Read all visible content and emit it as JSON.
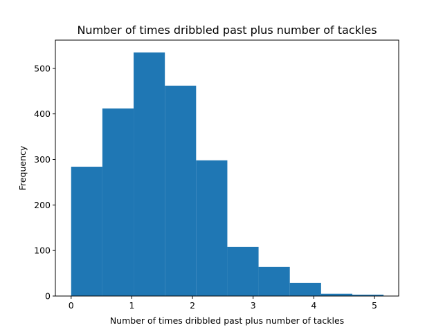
{
  "chart_data": {
    "type": "bar",
    "title": "Number of times dribbled past plus number of tackles",
    "xlabel": "Number of times dribbled past plus number of tackles",
    "ylabel": "Frequency",
    "xlim": [
      -0.26,
      5.4
    ],
    "ylim": [
      0,
      562
    ],
    "grid": false,
    "bar_color": "#1f77b4",
    "x_ticks": [
      0,
      1,
      2,
      3,
      4,
      5
    ],
    "y_ticks": [
      0,
      100,
      200,
      300,
      400,
      500
    ],
    "bins": [
      {
        "x0": 0.0,
        "x1": 0.515,
        "value": 284
      },
      {
        "x0": 0.515,
        "x1": 1.03,
        "value": 412
      },
      {
        "x0": 1.03,
        "x1": 1.545,
        "value": 535
      },
      {
        "x0": 1.545,
        "x1": 2.06,
        "value": 462
      },
      {
        "x0": 2.06,
        "x1": 2.575,
        "value": 298
      },
      {
        "x0": 2.575,
        "x1": 3.09,
        "value": 108
      },
      {
        "x0": 3.09,
        "x1": 3.605,
        "value": 64
      },
      {
        "x0": 3.605,
        "x1": 4.12,
        "value": 29
      },
      {
        "x0": 4.12,
        "x1": 4.635,
        "value": 5
      },
      {
        "x0": 4.635,
        "x1": 5.15,
        "value": 3
      }
    ]
  }
}
